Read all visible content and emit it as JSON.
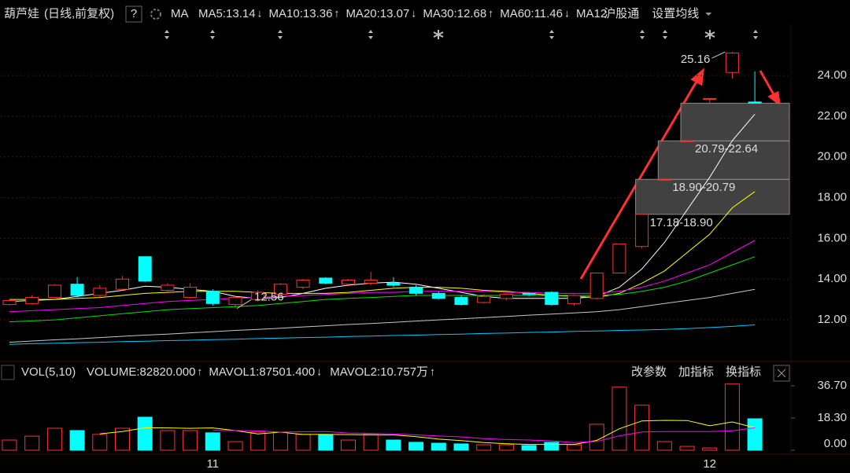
{
  "header": {
    "name": "葫芦娃",
    "mode": "(日线,前复权)",
    "help": "?",
    "indicator": "MA",
    "hk_connect": "沪股通",
    "settings": "设置均线"
  },
  "chart_data": [
    {
      "type": "candlestick",
      "categories": [
        null,
        null,
        null,
        null,
        null,
        null,
        null,
        null,
        null,
        "11",
        null,
        null,
        null,
        null,
        null,
        null,
        null,
        null,
        null,
        null,
        null,
        null,
        null,
        null,
        null,
        null,
        null,
        null,
        null,
        null,
        null,
        "12",
        null,
        null
      ],
      "open": [
        12.75,
        12.8,
        13.1,
        13.75,
        13.2,
        13.5,
        15.1,
        13.45,
        13.1,
        13.4,
        12.75,
        13.0,
        13.25,
        13.6,
        14.05,
        13.75,
        13.8,
        13.8,
        13.6,
        13.3,
        13.1,
        12.85,
        13.05,
        13.3,
        13.35,
        12.8,
        13.05,
        14.3,
        15.6,
        18.9,
        20.79,
        22.87,
        24.15,
        22.7
      ],
      "high": [
        13.0,
        13.2,
        13.75,
        14.1,
        13.7,
        14.15,
        15.1,
        13.8,
        13.8,
        13.5,
        13.2,
        13.45,
        13.8,
        14.0,
        14.1,
        14.0,
        14.35,
        14.1,
        13.7,
        13.4,
        13.2,
        13.25,
        13.3,
        13.35,
        13.4,
        13.25,
        14.3,
        15.72,
        17.2,
        18.9,
        20.79,
        22.87,
        25.16,
        24.2
      ],
      "low": [
        12.7,
        12.75,
        13.0,
        13.1,
        13.1,
        13.45,
        13.85,
        13.3,
        13.05,
        12.7,
        12.56,
        12.9,
        13.2,
        13.5,
        13.75,
        13.7,
        13.7,
        13.6,
        13.2,
        13.0,
        12.7,
        12.8,
        12.95,
        13.15,
        12.7,
        12.7,
        13.0,
        14.3,
        15.5,
        18.9,
        20.79,
        22.64,
        23.85,
        22.64
      ],
      "close": [
        12.95,
        13.1,
        13.7,
        13.2,
        13.55,
        14.0,
        13.9,
        13.7,
        13.6,
        12.8,
        13.1,
        13.35,
        13.75,
        13.95,
        13.8,
        13.95,
        13.95,
        13.7,
        13.3,
        13.05,
        12.75,
        13.15,
        13.25,
        13.25,
        12.75,
        13.2,
        14.3,
        15.72,
        17.18,
        18.9,
        20.79,
        22.87,
        25.1,
        22.64
      ],
      "up_color": "#ff3232",
      "down_color": "#00ffff",
      "series": [
        {
          "name": "MA5:13.14",
          "trend": "↓",
          "color": "#ffffff",
          "values": [
            12.9,
            12.95,
            13.0,
            13.15,
            13.3,
            13.45,
            13.65,
            13.6,
            13.5,
            13.4,
            13.15,
            13.05,
            13.1,
            13.3,
            13.55,
            13.7,
            13.8,
            13.85,
            13.75,
            13.55,
            13.35,
            13.15,
            13.05,
            13.05,
            13.05,
            13.05,
            13.15,
            13.6,
            14.5,
            15.8,
            17.4,
            19.0,
            20.8,
            22.1
          ]
        },
        {
          "name": "MA10:13.36",
          "trend": "↑",
          "color": "#ffff00",
          "values": [
            13.0,
            13.0,
            13.0,
            13.05,
            13.1,
            13.2,
            13.3,
            13.35,
            13.4,
            13.4,
            13.4,
            13.35,
            13.3,
            13.3,
            13.3,
            13.35,
            13.45,
            13.55,
            13.6,
            13.6,
            13.55,
            13.45,
            13.4,
            13.3,
            13.2,
            13.15,
            13.1,
            13.3,
            13.8,
            14.4,
            15.3,
            16.2,
            17.5,
            18.3
          ]
        },
        {
          "name": "MA20:13.07",
          "trend": "↓",
          "color": "#ff00ff",
          "values": [
            12.4,
            12.45,
            12.5,
            12.55,
            12.6,
            12.7,
            12.8,
            12.9,
            12.95,
            13.0,
            13.05,
            13.1,
            13.15,
            13.2,
            13.25,
            13.3,
            13.35,
            13.35,
            13.4,
            13.4,
            13.4,
            13.4,
            13.35,
            13.35,
            13.3,
            13.3,
            13.3,
            13.4,
            13.6,
            13.9,
            14.3,
            14.7,
            15.3,
            15.9
          ]
        },
        {
          "name": "MA30:12.68",
          "trend": "↑",
          "color": "#00e000",
          "values": [
            11.9,
            11.95,
            12.0,
            12.1,
            12.2,
            12.3,
            12.4,
            12.5,
            12.55,
            12.6,
            12.65,
            12.7,
            12.8,
            12.9,
            13.0,
            13.05,
            13.1,
            13.15,
            13.2,
            13.2,
            13.2,
            13.2,
            13.2,
            13.2,
            13.2,
            13.2,
            13.2,
            13.25,
            13.4,
            13.6,
            13.9,
            14.3,
            14.7,
            15.1
          ]
        },
        {
          "name": "MA60:11.46",
          "trend": "↓",
          "color": "#c8c8c8",
          "values": [
            10.9,
            10.96,
            11.02,
            11.07,
            11.13,
            11.19,
            11.25,
            11.3,
            11.36,
            11.42,
            11.48,
            11.53,
            11.59,
            11.65,
            11.71,
            11.77,
            11.82,
            11.88,
            11.94,
            12.0,
            12.05,
            12.11,
            12.17,
            12.23,
            12.28,
            12.34,
            12.4,
            12.5,
            12.65,
            12.8,
            12.95,
            13.1,
            13.3,
            13.5
          ]
        },
        {
          "name": "MA12",
          "color": "#00c8ff",
          "values": [
            10.8,
            10.83,
            10.85,
            10.88,
            10.9,
            10.93,
            10.95,
            10.98,
            11.0,
            11.03,
            11.05,
            11.08,
            11.1,
            11.13,
            11.15,
            11.18,
            11.2,
            11.23,
            11.25,
            11.28,
            11.3,
            11.33,
            11.35,
            11.38,
            11.4,
            11.43,
            11.45,
            11.48,
            11.5,
            11.53,
            11.57,
            11.62,
            11.68,
            11.75
          ]
        }
      ],
      "gaps": [
        {
          "label": "17.18-18.90",
          "low": 17.18,
          "high": 18.9
        },
        {
          "label": "18.90-20.79",
          "low": 18.9,
          "high": 20.79
        },
        {
          "label": "20.79-22.64",
          "low": 20.79,
          "high": 22.64
        }
      ],
      "high_label": 25.16,
      "low_label": 12.56,
      "ylim": [
        10.15,
        26.55
      ],
      "yticks": [
        {
          "value": 12,
          "label": "12.00"
        },
        {
          "value": 14,
          "label": "14.00"
        },
        {
          "value": 16,
          "label": "16.00"
        },
        {
          "value": 18,
          "label": "18.00"
        },
        {
          "value": 20,
          "label": "20.00"
        },
        {
          "value": 22,
          "label": "22.00"
        },
        {
          "value": 24,
          "label": "24.00"
        }
      ],
      "grid": true
    },
    {
      "type": "bar",
      "title": "VOL(5,10)",
      "volume_label": "VOLUME:82820.000",
      "volume_trend": "↑",
      "values": [
        5.8,
        8,
        12.5,
        11.2,
        9,
        12.5,
        18.8,
        11.2,
        11.2,
        9.9,
        4.9,
        10.3,
        10.3,
        9,
        9,
        5.8,
        9.4,
        5.8,
        4.5,
        4,
        3.6,
        3.1,
        3.1,
        2.7,
        4.5,
        3.1,
        14.8,
        35.9,
        25.6,
        4.9,
        2.2,
        1.3,
        37.7,
        17.9
      ],
      "series": [
        {
          "name": "MAVOL1:87501.400",
          "trend": "↓",
          "color": "#ffff00",
          "values": [
            null,
            null,
            null,
            null,
            9.3,
            10.6,
            12.8,
            12.7,
            12.5,
            12.7,
            11.2,
            9.3,
            10.3,
            9.0,
            9.0,
            8.9,
            8.7,
            8.7,
            7.7,
            6.3,
            5.5,
            4.4,
            3.7,
            3.3,
            3.3,
            3.3,
            5.6,
            12.2,
            16.7,
            17.0,
            16.9,
            13.9,
            16.1,
            12.8
          ]
        },
        {
          "name": "MAVOL2:10.757万",
          "trend": "↑",
          "color": "#ff00ff",
          "values": [
            null,
            null,
            null,
            null,
            null,
            null,
            null,
            null,
            null,
            11.3,
            11.2,
            11.0,
            10.3,
            10.5,
            10.6,
            9.8,
            9.6,
            9.3,
            8.7,
            8.1,
            7.6,
            6.6,
            6.1,
            5.8,
            5.3,
            4.4,
            5.0,
            8.2,
            10.4,
            10.6,
            10.6,
            10.6,
            11.0,
            12.8
          ]
        }
      ],
      "buttons": [
        "改参数",
        "加指标",
        "换指标"
      ],
      "ylim": [
        0,
        40.7
      ],
      "yticks": [
        {
          "value": 0,
          "label": "0.00"
        },
        {
          "value": 18.3,
          "label": "18.30"
        },
        {
          "value": 36.7,
          "label": "36.70"
        }
      ]
    }
  ]
}
